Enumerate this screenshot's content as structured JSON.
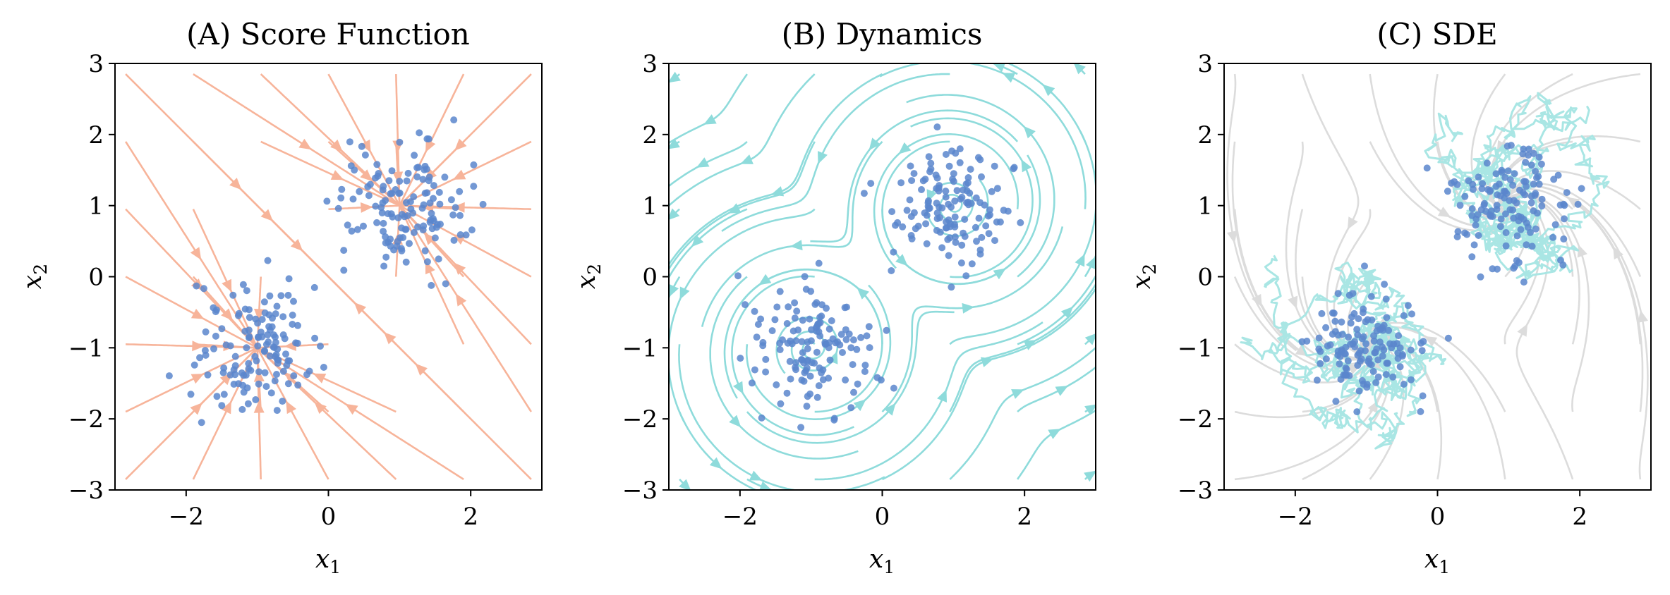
{
  "colors": {
    "score_stream": "#f7b49a",
    "dynamics_stream": "#8edbdb",
    "sde_stream": "#dcdcdc",
    "sde_path": "#a9e6e4",
    "points": "#5b86cc"
  },
  "chart_data": [
    {
      "type": "scatter",
      "title": "(A) Score Function",
      "xlabel": "x1",
      "ylabel": "x2",
      "xlim": [
        -3,
        3
      ],
      "ylim": [
        -3,
        3
      ],
      "xticks": [
        "−2",
        "0",
        "2"
      ],
      "yticks": [
        "3",
        "2",
        "1",
        "0",
        "−1",
        "−2",
        "−3"
      ],
      "background": "streamlines of score field (orange)",
      "series": [
        {
          "center": [
            1.0,
            1.0
          ],
          "spread": 0.45,
          "count": 130
        },
        {
          "center": [
            -1.0,
            -1.0
          ],
          "spread": 0.45,
          "count": 130
        }
      ]
    },
    {
      "type": "scatter",
      "title": "(B) Dynamics",
      "xlabel": "x1",
      "ylabel": "x2",
      "xlim": [
        -3,
        3
      ],
      "ylim": [
        -3,
        3
      ],
      "xticks": [
        "−2",
        "0",
        "2"
      ],
      "yticks": [
        "3",
        "2",
        "1",
        "0",
        "−1",
        "−2",
        "−3"
      ],
      "background": "rotational streamlines (cyan)",
      "series": [
        {
          "center": [
            1.0,
            1.0
          ],
          "spread": 0.42,
          "count": 130
        },
        {
          "center": [
            -1.0,
            -1.0
          ],
          "spread": 0.42,
          "count": 130
        }
      ]
    },
    {
      "type": "scatter",
      "title": "(C) SDE",
      "xlabel": "x1",
      "ylabel": "x2",
      "xlim": [
        -3,
        3
      ],
      "ylim": [
        -3,
        3
      ],
      "xticks": [
        "−2",
        "0",
        "2"
      ],
      "yticks": [
        "3",
        "2",
        "1",
        "0",
        "−1",
        "−2",
        "−3"
      ],
      "background": "grey streamlines with cyan stochastic trajectories",
      "series": [
        {
          "center": [
            1.0,
            1.0
          ],
          "spread": 0.42,
          "count": 130
        },
        {
          "center": [
            -1.0,
            -1.0
          ],
          "spread": 0.42,
          "count": 130
        }
      ]
    }
  ]
}
